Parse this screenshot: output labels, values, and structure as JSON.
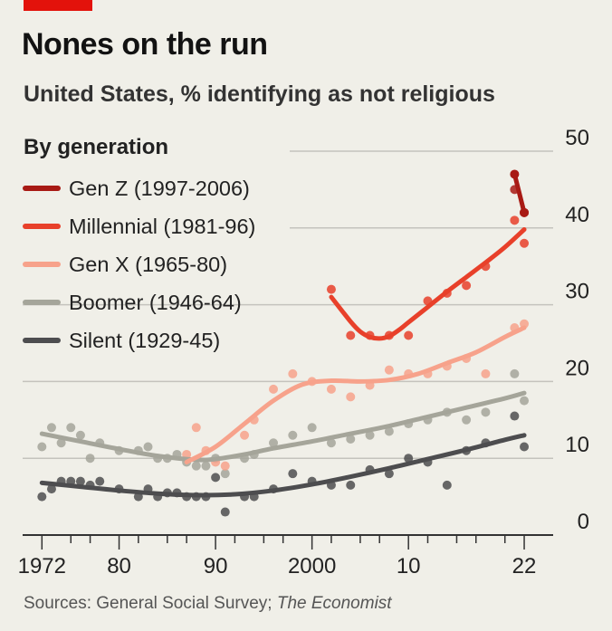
{
  "header": {
    "title": "Nones on the run",
    "subtitle": "United States, % identifying as not religious"
  },
  "footer": {
    "source_prefix": "Sources: General Social Survey; ",
    "source_italic": "The Economist"
  },
  "colors": {
    "background": "#f0efe8",
    "accent_tag": "#e3120b",
    "grid": "#c4c3bd",
    "axis": "#333333"
  },
  "chart_data": {
    "type": "scatter",
    "title": "Nones on the run",
    "subtitle": "United States, % identifying as not religious",
    "legend_title": "By generation",
    "legend_position": "top-left",
    "xlim": [
      1970,
      2025
    ],
    "ylim": [
      0,
      50
    ],
    "y_axis_side": "right",
    "grid": "horizontal",
    "x_tick_labels": [
      {
        "x": 1972,
        "label": "1972"
      },
      {
        "x": 1980,
        "label": "80"
      },
      {
        "x": 1990,
        "label": "90"
      },
      {
        "x": 2000,
        "label": "2000"
      },
      {
        "x": 2010,
        "label": "10"
      },
      {
        "x": 2022,
        "label": "22"
      }
    ],
    "x_minor_ticks": [
      1975,
      1977,
      1982,
      1985,
      1987,
      1992,
      1995,
      1997,
      2002,
      2005,
      2007,
      2012,
      2015,
      2017,
      2020
    ],
    "y_ticks": [
      0,
      10,
      20,
      30,
      40,
      50
    ],
    "series": [
      {
        "name": "Gen Z (1997-2006)",
        "color": "#a81a14",
        "points": [
          [
            2021,
            45
          ],
          [
            2022,
            42
          ]
        ],
        "trend": [
          [
            2021,
            47
          ],
          [
            2022,
            42
          ]
        ]
      },
      {
        "name": "Millennial (1981-96)",
        "color": "#e8402a",
        "points": [
          [
            2002,
            32
          ],
          [
            2004,
            26
          ],
          [
            2006,
            26
          ],
          [
            2008,
            26
          ],
          [
            2010,
            26
          ],
          [
            2012,
            30.5
          ],
          [
            2014,
            31.5
          ],
          [
            2016,
            32.5
          ],
          [
            2018,
            35
          ],
          [
            2021,
            41
          ],
          [
            2022,
            38
          ]
        ],
        "trend": [
          [
            2002,
            31
          ],
          [
            2004,
            27.8
          ],
          [
            2005,
            26.5
          ],
          [
            2006,
            25.8
          ],
          [
            2007,
            25.6
          ],
          [
            2008,
            25.9
          ],
          [
            2009,
            26.7
          ],
          [
            2010,
            27.7
          ],
          [
            2012,
            29.7
          ],
          [
            2014,
            31.7
          ],
          [
            2016,
            33.6
          ],
          [
            2018,
            35.5
          ],
          [
            2020,
            37.5
          ],
          [
            2022,
            39.8
          ]
        ]
      },
      {
        "name": "Gen X (1965-80)",
        "color": "#f7a28b",
        "points": [
          [
            1987,
            10.5
          ],
          [
            1988,
            14
          ],
          [
            1989,
            11
          ],
          [
            1990,
            9.5
          ],
          [
            1991,
            9
          ],
          [
            1993,
            13
          ],
          [
            1994,
            15
          ],
          [
            1996,
            19
          ],
          [
            1998,
            21
          ],
          [
            2000,
            20
          ],
          [
            2002,
            19
          ],
          [
            2004,
            18
          ],
          [
            2006,
            19.5
          ],
          [
            2008,
            21.5
          ],
          [
            2010,
            21
          ],
          [
            2012,
            21
          ],
          [
            2014,
            22
          ],
          [
            2016,
            23
          ],
          [
            2018,
            21
          ],
          [
            2021,
            27
          ],
          [
            2022,
            27.5
          ]
        ],
        "trend": [
          [
            1987,
            9.5
          ],
          [
            1990,
            11.5
          ],
          [
            1993,
            14.5
          ],
          [
            1996,
            17.5
          ],
          [
            1999,
            19.6
          ],
          [
            2002,
            20.1
          ],
          [
            2005,
            20.0
          ],
          [
            2008,
            20.2
          ],
          [
            2011,
            21.0
          ],
          [
            2014,
            22.4
          ],
          [
            2017,
            23.8
          ],
          [
            2020,
            25.8
          ],
          [
            2022,
            27.0
          ]
        ]
      },
      {
        "name": "Boomer (1946-64)",
        "color": "#a5a59a",
        "points": [
          [
            1972,
            11.5
          ],
          [
            1973,
            14
          ],
          [
            1974,
            12
          ],
          [
            1975,
            14
          ],
          [
            1976,
            13
          ],
          [
            1977,
            10
          ],
          [
            1978,
            12
          ],
          [
            1980,
            11
          ],
          [
            1982,
            11
          ],
          [
            1983,
            11.5
          ],
          [
            1984,
            10
          ],
          [
            1985,
            10
          ],
          [
            1986,
            10.5
          ],
          [
            1987,
            9.5
          ],
          [
            1988,
            9
          ],
          [
            1989,
            9
          ],
          [
            1990,
            10
          ],
          [
            1991,
            8
          ],
          [
            1993,
            10
          ],
          [
            1994,
            10.5
          ],
          [
            1996,
            12
          ],
          [
            1998,
            13
          ],
          [
            2000,
            14
          ],
          [
            2002,
            12
          ],
          [
            2004,
            12.5
          ],
          [
            2006,
            13
          ],
          [
            2008,
            13.5
          ],
          [
            2010,
            14.5
          ],
          [
            2012,
            15
          ],
          [
            2014,
            16
          ],
          [
            2016,
            15
          ],
          [
            2018,
            16
          ],
          [
            2021,
            21
          ],
          [
            2022,
            17.5
          ]
        ],
        "trend": [
          [
            1972,
            13.2
          ],
          [
            1976,
            12.2
          ],
          [
            1980,
            11.2
          ],
          [
            1984,
            10.3
          ],
          [
            1988,
            9.8
          ],
          [
            1990,
            9.9
          ],
          [
            1993,
            10.5
          ],
          [
            1996,
            11.3
          ],
          [
            2000,
            12.2
          ],
          [
            2004,
            13.2
          ],
          [
            2008,
            14.2
          ],
          [
            2012,
            15.4
          ],
          [
            2016,
            16.6
          ],
          [
            2020,
            17.8
          ],
          [
            2022,
            18.5
          ]
        ]
      },
      {
        "name": "Silent (1929-45)",
        "color": "#4d4d4f",
        "points": [
          [
            1972,
            5
          ],
          [
            1973,
            6
          ],
          [
            1974,
            7
          ],
          [
            1975,
            7
          ],
          [
            1976,
            7
          ],
          [
            1977,
            6.5
          ],
          [
            1978,
            7
          ],
          [
            1980,
            6
          ],
          [
            1982,
            5
          ],
          [
            1983,
            6
          ],
          [
            1984,
            5
          ],
          [
            1985,
            5.5
          ],
          [
            1986,
            5.5
          ],
          [
            1987,
            5
          ],
          [
            1988,
            5
          ],
          [
            1989,
            5
          ],
          [
            1990,
            7.5
          ],
          [
            1991,
            3
          ],
          [
            1993,
            5
          ],
          [
            1994,
            5
          ],
          [
            1996,
            6
          ],
          [
            1998,
            8
          ],
          [
            2000,
            7
          ],
          [
            2002,
            6.5
          ],
          [
            2004,
            6.5
          ],
          [
            2006,
            8.5
          ],
          [
            2008,
            8
          ],
          [
            2010,
            10
          ],
          [
            2012,
            9.5
          ],
          [
            2014,
            6.5
          ],
          [
            2016,
            11
          ],
          [
            2018,
            12
          ],
          [
            2021,
            15.5
          ],
          [
            2022,
            11.5
          ]
        ],
        "trend": [
          [
            1972,
            6.8
          ],
          [
            1976,
            6.3
          ],
          [
            1980,
            5.8
          ],
          [
            1984,
            5.4
          ],
          [
            1988,
            5.2
          ],
          [
            1992,
            5.3
          ],
          [
            1996,
            5.8
          ],
          [
            2000,
            6.6
          ],
          [
            2004,
            7.6
          ],
          [
            2008,
            8.7
          ],
          [
            2012,
            9.9
          ],
          [
            2016,
            11.1
          ],
          [
            2020,
            12.4
          ],
          [
            2022,
            13.0
          ]
        ]
      }
    ]
  }
}
